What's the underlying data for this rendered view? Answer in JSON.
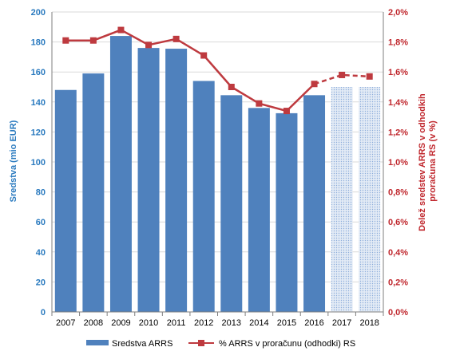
{
  "chart_data": {
    "type": "bar",
    "categories": [
      "2007",
      "2008",
      "2009",
      "2010",
      "2011",
      "2012",
      "2013",
      "2014",
      "2015",
      "2016",
      "2017",
      "2018"
    ],
    "series": [
      {
        "name": "Sredstva ARRS",
        "type": "bar",
        "axis": "left",
        "values": [
          148,
          159,
          184,
          176,
          175.5,
          154,
          144.5,
          136,
          132.5,
          144.5,
          150,
          150
        ],
        "projected_from_index": 10
      },
      {
        "name": "% ARRS v proračunu (odhodki) RS",
        "type": "line",
        "axis": "right",
        "values": [
          1.81,
          1.81,
          1.88,
          1.78,
          1.82,
          1.71,
          1.5,
          1.39,
          1.34,
          1.52,
          1.58,
          1.57
        ],
        "dashed_from_index": 9
      }
    ],
    "ylabel_left": "Sredstva (mio EUR)",
    "ylabel_right_lines": [
      "Delež sredstev ARRS v odhodkih",
      "proračuna RS (v %)"
    ],
    "ylim_left": [
      0,
      200
    ],
    "ylim_right": [
      0,
      2.0
    ],
    "yticks_left": [
      "0",
      "20",
      "40",
      "60",
      "80",
      "100",
      "120",
      "140",
      "160",
      "180",
      "200"
    ],
    "yticks_right": [
      "0,0%",
      "0,2%",
      "0,4%",
      "0,6%",
      "0,8%",
      "1,0%",
      "1,2%",
      "1,4%",
      "1,6%",
      "1,8%",
      "2,0%"
    ],
    "grid": true,
    "legend_position": "bottom",
    "colors": {
      "bar": "#4f81bd",
      "bar_projected": "#dbe5f1",
      "line": "#be3a3f",
      "left_axis_text": "#2a7abf",
      "right_axis_text": "#c0272d",
      "grid": "#d9d9d9"
    }
  }
}
